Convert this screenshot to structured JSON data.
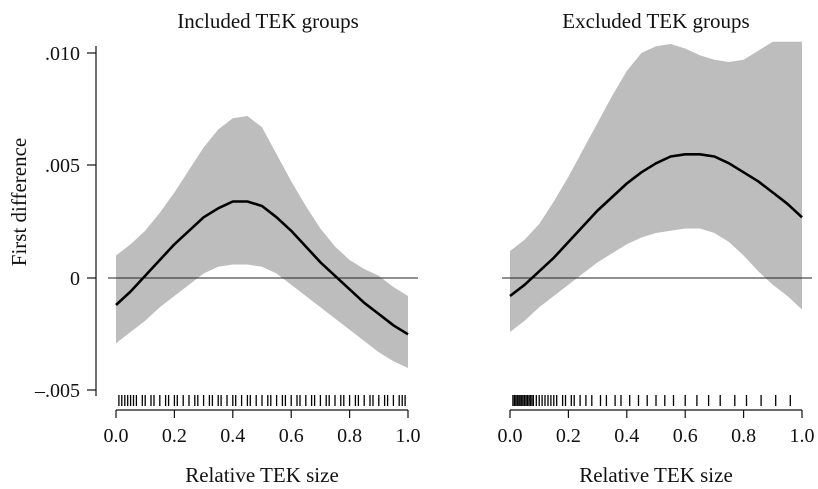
{
  "chart_data": {
    "type": "line",
    "ylabel": "First difference",
    "yticks": [
      ".010",
      ".005",
      "0",
      "–.005"
    ],
    "ytick_values": [
      0.01,
      0.005,
      0.0,
      -0.005
    ],
    "ylim": [
      -0.0052,
      0.0105
    ],
    "reference_line": 0,
    "panels": [
      {
        "title": "Included TEK groups",
        "xlabel": "Relative TEK size",
        "xlim": [
          0,
          1
        ],
        "xticks": [
          "0.0",
          "0.2",
          "0.4",
          "0.6",
          "0.8",
          "1.0"
        ],
        "xtick_values": [
          0,
          0.2,
          0.4,
          0.6,
          0.8,
          1.0
        ],
        "x": [
          0,
          0.05,
          0.1,
          0.15,
          0.2,
          0.25,
          0.3,
          0.35,
          0.4,
          0.45,
          0.5,
          0.55,
          0.6,
          0.65,
          0.7,
          0.75,
          0.8,
          0.85,
          0.9,
          0.95,
          1.0
        ],
        "estimate": [
          -0.0012,
          -0.0006,
          0.0001,
          0.0008,
          0.0015,
          0.0021,
          0.0027,
          0.0031,
          0.0034,
          0.0034,
          0.0032,
          0.0027,
          0.0021,
          0.0014,
          0.0007,
          0.0001,
          -0.0005,
          -0.0011,
          -0.0016,
          -0.0021,
          -0.0025
        ],
        "ci_upper": [
          0.001,
          0.0015,
          0.0021,
          0.0029,
          0.0038,
          0.0048,
          0.0058,
          0.0066,
          0.0071,
          0.0072,
          0.0067,
          0.0055,
          0.0043,
          0.0032,
          0.0022,
          0.0014,
          0.0008,
          0.0004,
          0.0001,
          -0.0004,
          -0.0008
        ],
        "ci_lower": [
          -0.0029,
          -0.0024,
          -0.0019,
          -0.0013,
          -0.0008,
          -0.0003,
          0.0002,
          0.0005,
          0.0006,
          0.0006,
          0.0005,
          0.0002,
          -0.0003,
          -0.0008,
          -0.0013,
          -0.0018,
          -0.0023,
          -0.0028,
          -0.0033,
          -0.0037,
          -0.004
        ],
        "rug": [
          0.01,
          0.02,
          0.03,
          0.04,
          0.05,
          0.06,
          0.07,
          0.09,
          0.1,
          0.12,
          0.13,
          0.15,
          0.17,
          0.18,
          0.2,
          0.21,
          0.23,
          0.25,
          0.27,
          0.28,
          0.3,
          0.32,
          0.33,
          0.35,
          0.36,
          0.38,
          0.4,
          0.41,
          0.43,
          0.45,
          0.46,
          0.48,
          0.5,
          0.52,
          0.53,
          0.55,
          0.57,
          0.58,
          0.6,
          0.62,
          0.63,
          0.65,
          0.67,
          0.68,
          0.7,
          0.72,
          0.73,
          0.75,
          0.77,
          0.78,
          0.8,
          0.82,
          0.83,
          0.85,
          0.87,
          0.88,
          0.9,
          0.92,
          0.93,
          0.95,
          0.97,
          0.98,
          0.99
        ]
      },
      {
        "title": "Excluded TEK groups",
        "xlabel": "Relative TEK size",
        "xlim": [
          0,
          1
        ],
        "xticks": [
          "0.0",
          "0.2",
          "0.4",
          "0.6",
          "0.8",
          "1.0"
        ],
        "xtick_values": [
          0,
          0.2,
          0.4,
          0.6,
          0.8,
          1.0
        ],
        "x": [
          0,
          0.05,
          0.1,
          0.15,
          0.2,
          0.25,
          0.3,
          0.35,
          0.4,
          0.45,
          0.5,
          0.55,
          0.6,
          0.65,
          0.7,
          0.75,
          0.8,
          0.85,
          0.9,
          0.95,
          1.0
        ],
        "estimate": [
          -0.0008,
          -0.0003,
          0.0003,
          0.0009,
          0.0016,
          0.0023,
          0.003,
          0.0036,
          0.0042,
          0.0047,
          0.0051,
          0.0054,
          0.0055,
          0.0055,
          0.0054,
          0.0051,
          0.0047,
          0.0043,
          0.0038,
          0.0033,
          0.0027
        ],
        "ci_upper": [
          0.0012,
          0.0017,
          0.0024,
          0.0034,
          0.0045,
          0.0057,
          0.0069,
          0.0081,
          0.0092,
          0.01,
          0.0103,
          0.0104,
          0.0102,
          0.0099,
          0.0097,
          0.0096,
          0.0097,
          0.0101,
          0.0105,
          0.0105,
          0.0105
        ],
        "ci_lower": [
          -0.0024,
          -0.0019,
          -0.0013,
          -0.0008,
          -0.0003,
          0.0002,
          0.0007,
          0.0011,
          0.0015,
          0.0018,
          0.002,
          0.0021,
          0.0022,
          0.0022,
          0.002,
          0.0016,
          0.001,
          0.0003,
          -0.0003,
          -0.0008,
          -0.0014
        ],
        "rug": [
          0.01,
          0.015,
          0.02,
          0.025,
          0.03,
          0.035,
          0.04,
          0.045,
          0.05,
          0.055,
          0.06,
          0.065,
          0.07,
          0.075,
          0.08,
          0.09,
          0.1,
          0.11,
          0.12,
          0.13,
          0.14,
          0.15,
          0.16,
          0.18,
          0.19,
          0.21,
          0.22,
          0.24,
          0.26,
          0.28,
          0.31,
          0.33,
          0.36,
          0.38,
          0.41,
          0.44,
          0.47,
          0.5,
          0.53,
          0.56,
          0.6,
          0.64,
          0.68,
          0.72,
          0.77,
          0.81,
          0.86,
          0.91,
          0.96
        ]
      }
    ]
  }
}
